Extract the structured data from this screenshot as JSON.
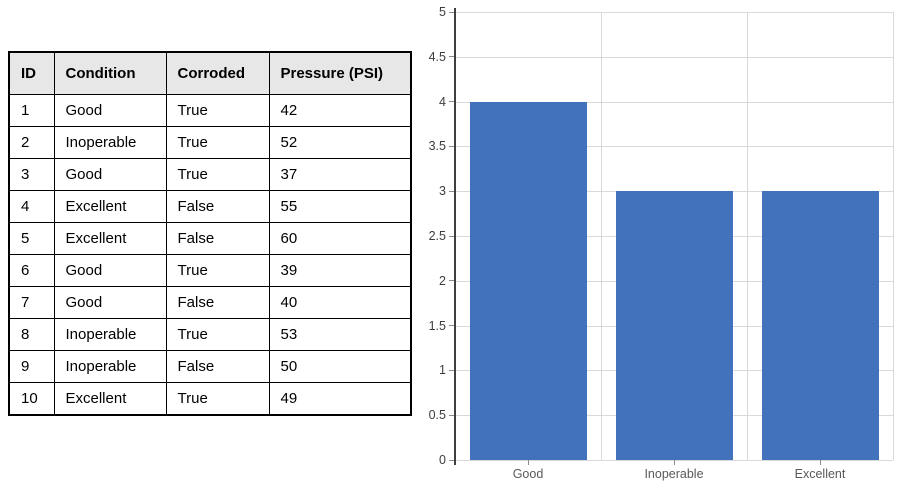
{
  "page": {
    "background": "#ffffff"
  },
  "table": {
    "headers": [
      "ID",
      "Condition",
      "Corroded",
      "Pressure (PSI)"
    ],
    "rows": [
      [
        "1",
        "Good",
        "True",
        "42"
      ],
      [
        "2",
        "Inoperable",
        "True",
        "52"
      ],
      [
        "3",
        "Good",
        "True",
        "37"
      ],
      [
        "4",
        "Excellent",
        "False",
        "55"
      ],
      [
        "5",
        "Excellent",
        "False",
        "60"
      ],
      [
        "6",
        "Good",
        "True",
        "39"
      ],
      [
        "7",
        "Good",
        "False",
        "40"
      ],
      [
        "8",
        "Inoperable",
        "True",
        "53"
      ],
      [
        "9",
        "Inoperable",
        "False",
        "50"
      ],
      [
        "10",
        "Excellent",
        "True",
        "49"
      ]
    ],
    "header_bg": "#e7e7e7",
    "border_color": "#000000"
  },
  "chart_data": {
    "type": "bar",
    "categories": [
      "Good",
      "Inoperable",
      "Excellent"
    ],
    "values": [
      4,
      3,
      3
    ],
    "title": "",
    "xlabel": "",
    "ylabel": "",
    "ylim": [
      0,
      5
    ],
    "ytick_step": 0.5,
    "ytick_labels": [
      "0",
      "0.5",
      "1",
      "1.5",
      "2",
      "2.5",
      "3",
      "3.5",
      "4",
      "4.5",
      "5"
    ],
    "grid": true,
    "legend_position": "none",
    "bar_color": "#4372bc",
    "gridline_color": "#d9d9d9",
    "axis_color": "#404040",
    "tick_color": "#8c8c8c",
    "ytick_label_color": "#3d3d3d",
    "xtick_label_color": "#595959"
  }
}
